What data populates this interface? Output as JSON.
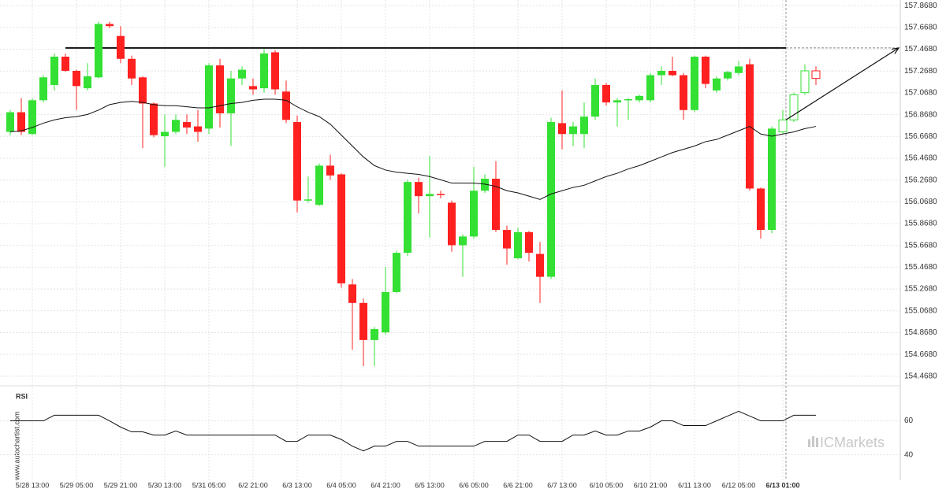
{
  "chart_data": [
    {
      "type": "candlestick",
      "categories": [
        null,
        null,
        "5/28 13:00",
        null,
        null,
        null,
        "5/29 05:00",
        null,
        null,
        null,
        "5/29 21:00",
        null,
        null,
        null,
        "5/30 13:00",
        null,
        null,
        null,
        "5/31 05:00",
        null,
        null,
        null,
        "6/2 21:00",
        null,
        null,
        null,
        "6/3 13:00",
        null,
        null,
        null,
        "6/4 05:00",
        null,
        null,
        null,
        "6/4 21:00",
        null,
        null,
        null,
        "6/5 13:00",
        null,
        null,
        null,
        "6/6 05:00",
        null,
        null,
        null,
        "6/6 21:00",
        null,
        null,
        null,
        "6/7 13:00",
        null,
        null,
        null,
        "6/10 05:00",
        null,
        null,
        null,
        "6/10 21:00",
        null,
        null,
        null,
        "6/11 13:00",
        null,
        null,
        null,
        "6/12 05:00",
        null,
        null,
        null,
        "6/13 01:00",
        null,
        null,
        null
      ],
      "open": [
        156.71,
        156.89,
        156.69,
        157.0,
        157.14,
        157.4,
        157.27,
        157.11,
        157.21,
        157.7,
        157.59,
        157.38,
        157.21,
        156.97,
        156.67,
        156.71,
        156.8,
        156.76,
        156.74,
        157.32,
        156.88,
        157.2,
        157.13,
        157.11,
        157.44,
        157.08,
        156.8,
        156.08,
        156.04,
        156.4,
        156.32,
        155.31,
        155.14,
        154.8,
        154.87,
        155.24,
        155.6,
        156.25,
        156.12,
        156.14,
        156.06,
        155.67,
        155.75,
        156.17,
        156.28,
        155.81,
        155.55,
        155.79,
        155.59,
        155.38,
        156.79,
        156.69,
        156.69,
        156.85,
        157.14,
        156.98,
        157.0,
        157.0,
        157.0,
        157.23,
        157.27,
        157.23,
        156.91,
        157.4,
        157.09,
        157.2,
        157.25,
        157.33,
        156.19,
        155.81,
        156.71,
        156.82,
        157.07,
        157.27
      ],
      "high": [
        156.91,
        157.02,
        157.02,
        157.23,
        157.43,
        157.43,
        157.28,
        157.34,
        157.72,
        157.72,
        157.68,
        157.41,
        157.22,
        156.98,
        156.87,
        156.87,
        156.87,
        156.91,
        157.34,
        157.38,
        157.27,
        157.31,
        157.2,
        157.47,
        157.46,
        157.18,
        156.86,
        156.3,
        156.42,
        156.5,
        156.33,
        155.36,
        155.18,
        154.92,
        155.47,
        155.62,
        156.27,
        156.29,
        156.49,
        156.17,
        156.08,
        155.77,
        156.39,
        156.32,
        156.44,
        155.85,
        155.83,
        155.8,
        155.7,
        156.84,
        157.09,
        156.8,
        156.98,
        157.2,
        157.16,
        157.02,
        157.02,
        157.05,
        157.25,
        157.31,
        157.4,
        157.25,
        157.41,
        157.41,
        157.22,
        157.27,
        157.36,
        157.38,
        156.2,
        156.76,
        156.91,
        157.07,
        157.33,
        157.31
      ],
      "low": [
        156.68,
        156.68,
        156.68,
        156.98,
        157.09,
        157.26,
        156.91,
        157.09,
        157.2,
        157.66,
        157.34,
        157.14,
        156.56,
        156.66,
        156.39,
        156.69,
        156.69,
        156.62,
        156.69,
        156.75,
        156.58,
        157.14,
        157.05,
        157.07,
        157.05,
        156.79,
        155.97,
        156.06,
        156.03,
        156.27,
        155.28,
        154.71,
        154.56,
        154.56,
        154.85,
        155.23,
        155.57,
        155.96,
        155.74,
        156.1,
        155.61,
        155.38,
        155.73,
        156.15,
        155.79,
        155.49,
        155.54,
        155.52,
        155.14,
        155.36,
        156.55,
        156.58,
        156.56,
        156.82,
        156.95,
        156.76,
        156.82,
        156.98,
        156.98,
        157.14,
        157.22,
        156.82,
        156.89,
        157.11,
        157.07,
        157.18,
        157.23,
        156.17,
        155.73,
        155.78,
        156.69,
        156.8,
        157.05,
        157.14
      ],
      "close": [
        156.89,
        156.71,
        157.0,
        157.21,
        157.4,
        157.27,
        157.13,
        157.22,
        157.7,
        157.68,
        157.38,
        157.2,
        156.97,
        156.68,
        156.71,
        156.82,
        156.75,
        156.71,
        157.32,
        156.88,
        157.2,
        157.28,
        157.1,
        157.43,
        157.1,
        156.82,
        156.08,
        156.09,
        156.4,
        156.31,
        155.32,
        155.14,
        154.8,
        154.9,
        155.24,
        155.6,
        156.25,
        156.12,
        156.14,
        156.13,
        155.67,
        155.75,
        156.17,
        156.28,
        155.81,
        155.64,
        155.79,
        155.6,
        155.38,
        156.8,
        156.69,
        156.76,
        156.85,
        157.14,
        156.98,
        157.0,
        157.01,
        157.04,
        157.23,
        157.27,
        157.23,
        156.91,
        157.4,
        157.15,
        157.2,
        157.26,
        157.31,
        156.19,
        155.81,
        156.74,
        156.82,
        157.05,
        157.27,
        157.2
      ],
      "hollow": [
        false,
        false,
        false,
        false,
        false,
        false,
        false,
        false,
        false,
        false,
        false,
        false,
        false,
        false,
        false,
        false,
        false,
        false,
        false,
        false,
        false,
        false,
        false,
        false,
        false,
        false,
        false,
        false,
        false,
        false,
        false,
        false,
        false,
        false,
        false,
        false,
        false,
        false,
        false,
        false,
        false,
        false,
        false,
        false,
        false,
        false,
        false,
        false,
        false,
        false,
        false,
        false,
        false,
        false,
        false,
        false,
        false,
        false,
        false,
        false,
        false,
        false,
        false,
        false,
        false,
        false,
        false,
        false,
        false,
        false,
        true,
        true,
        true,
        true
      ],
      "ma": [
        156.71,
        156.72,
        156.75,
        156.79,
        156.82,
        156.84,
        156.85,
        156.87,
        156.91,
        156.96,
        156.98,
        156.99,
        156.98,
        156.96,
        156.95,
        156.95,
        156.94,
        156.93,
        156.93,
        156.95,
        156.97,
        156.98,
        157.0,
        157.01,
        157.01,
        157.0,
        156.94,
        156.89,
        156.85,
        156.78,
        156.68,
        156.58,
        156.48,
        156.4,
        156.36,
        156.34,
        156.33,
        156.32,
        156.3,
        156.27,
        156.24,
        156.24,
        156.24,
        156.23,
        156.21,
        156.17,
        156.15,
        156.12,
        156.09,
        156.14,
        156.17,
        156.2,
        156.22,
        156.26,
        156.3,
        156.33,
        156.37,
        156.4,
        156.44,
        156.48,
        156.52,
        156.55,
        156.58,
        156.62,
        156.64,
        156.68,
        156.72,
        156.76,
        156.69,
        156.67,
        156.69,
        156.71,
        156.74,
        156.76
      ],
      "resistance": 157.48,
      "up_color": "#33e033",
      "down_color": "#ff2020",
      "ma_color": "#111111",
      "ylim": [
        154.38,
        157.92
      ],
      "yticks": [
        {
          "value": 157.868,
          "label": "157.8680"
        },
        {
          "value": 157.668,
          "label": "157.6680"
        },
        {
          "value": 157.468,
          "label": "157.4680"
        },
        {
          "value": 157.268,
          "label": "157.2680"
        },
        {
          "value": 157.068,
          "label": "157.0680"
        },
        {
          "value": 156.868,
          "label": "156.8680"
        },
        {
          "value": 156.668,
          "label": "156.6680"
        },
        {
          "value": 156.468,
          "label": "156.4680"
        },
        {
          "value": 156.268,
          "label": "156.2680"
        },
        {
          "value": 156.068,
          "label": "156.0680"
        },
        {
          "value": 155.868,
          "label": "155.8680"
        },
        {
          "value": 155.668,
          "label": "155.6680"
        },
        {
          "value": 155.468,
          "label": "155.4680"
        },
        {
          "value": 155.268,
          "label": "155.2680"
        },
        {
          "value": 155.068,
          "label": "155.0680"
        },
        {
          "value": 154.868,
          "label": "154.8680"
        },
        {
          "value": 154.668,
          "label": "154.6680"
        },
        {
          "value": 154.468,
          "label": "154.4680"
        }
      ],
      "grid": true
    },
    {
      "type": "line",
      "title": "RSI",
      "values": [
        60,
        60,
        60,
        60,
        63.3,
        63.3,
        63.3,
        63.3,
        63.3,
        60,
        56.3,
        53.5,
        53.5,
        51.6,
        51.6,
        54.0,
        51.6,
        51.6,
        51.6,
        51.6,
        51.6,
        51.6,
        51.6,
        51.6,
        51.6,
        47.9,
        47.9,
        51.6,
        51.6,
        51.6,
        49.0,
        45.1,
        42.3,
        45.1,
        45.1,
        47.9,
        47.9,
        45.1,
        45.1,
        45.1,
        45.1,
        45.1,
        45.1,
        47.9,
        47.9,
        47.9,
        51.6,
        51.6,
        47.9,
        47.9,
        47.9,
        51.6,
        51.6,
        54.0,
        51.6,
        51.6,
        54.0,
        54.0,
        56.3,
        60,
        60,
        57.2,
        57.2,
        57.2,
        60,
        62.8,
        65.6,
        62.8,
        60,
        60,
        60,
        63.3,
        63.3,
        63.3
      ],
      "color": "#111111",
      "ylim": [
        25,
        76
      ],
      "yticks": [
        60,
        40
      ]
    }
  ],
  "watermarks": {
    "site": "www.autochartist.com",
    "brand": "ICMarkets"
  }
}
